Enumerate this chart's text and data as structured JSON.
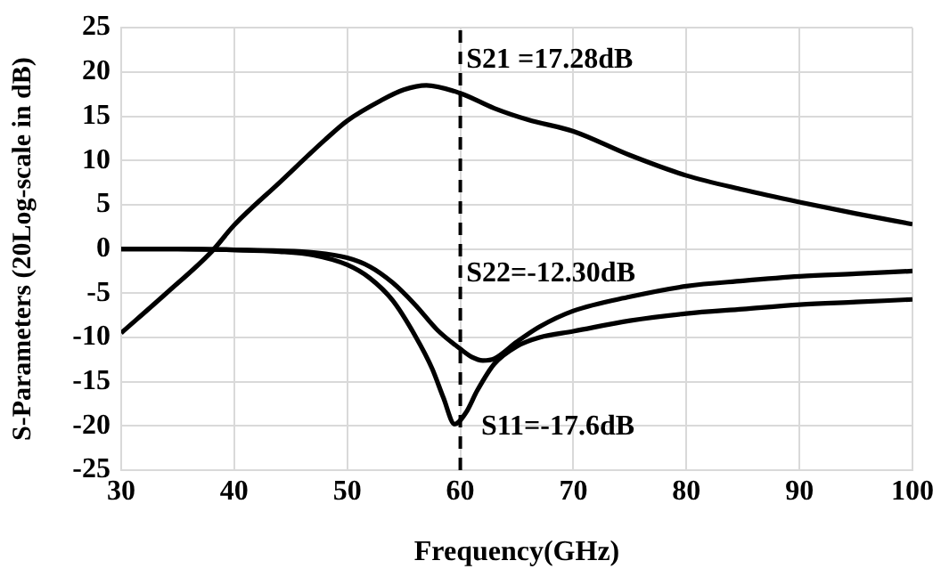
{
  "chart_data": {
    "type": "line",
    "xlabel": "Frequency(GHz)",
    "ylabel": "S-Parameters (20Log-scale in dB)",
    "xlim": [
      30,
      100
    ],
    "xticks": [
      30,
      40,
      50,
      60,
      70,
      80,
      90,
      100
    ],
    "ylim": [
      -25,
      25
    ],
    "yticks": [
      -25,
      -20,
      -15,
      -10,
      -5,
      0,
      5,
      10,
      15,
      20,
      25
    ],
    "grid": true,
    "legend": false,
    "marker": "none",
    "line_style": "solid",
    "series": [
      {
        "color": "#000000",
        "x": [
          30,
          34,
          38,
          40,
          44,
          48,
          50,
          53,
          55,
          57,
          60,
          63,
          66,
          70,
          75,
          80,
          85,
          90,
          95,
          100
        ],
        "values": [
          -9.5,
          -5,
          -0.3,
          2.7,
          7.5,
          12.3,
          14.5,
          16.8,
          18,
          18.5,
          17.6,
          15.9,
          14.6,
          13.3,
          10.6,
          8.3,
          6.7,
          5.3,
          4,
          2.8
        ]
      },
      {
        "color": "#000000",
        "x": [
          30,
          35,
          40,
          44,
          47,
          50,
          52,
          54,
          56,
          58,
          60,
          61,
          62,
          63,
          65,
          67,
          70,
          75,
          80,
          85,
          90,
          95,
          100
        ],
        "values": [
          0,
          0,
          -0.1,
          -0.2,
          -0.4,
          -1,
          -2,
          -3.8,
          -6.3,
          -9.2,
          -11.3,
          -12.2,
          -12.6,
          -12.4,
          -10.5,
          -8.8,
          -7,
          -5.4,
          -4.2,
          -3.6,
          -3.1,
          -2.8,
          -2.5
        ]
      },
      {
        "color": "#000000",
        "x": [
          30,
          35,
          40,
          44,
          47,
          50,
          52,
          54,
          56,
          57.5,
          58.5,
          59.5,
          60.5,
          61.5,
          63,
          65,
          67,
          70,
          75,
          80,
          85,
          90,
          95,
          100
        ],
        "values": [
          0,
          0,
          -0.1,
          -0.3,
          -0.7,
          -1.8,
          -3.3,
          -5.8,
          -9.8,
          -13.5,
          -16.8,
          -19.8,
          -18.5,
          -16,
          -13,
          -11,
          -10,
          -9.3,
          -8.1,
          -7.3,
          -6.8,
          -6.3,
          -6,
          -5.7
        ]
      }
    ],
    "ref_lines": [
      {
        "axis": "x",
        "value": 60,
        "color": "#000000",
        "line_style": "dashed"
      }
    ],
    "annotations": [
      "S21 =17.28dB",
      "S22=-12.30dB",
      "S11=-17.6dB"
    ]
  }
}
